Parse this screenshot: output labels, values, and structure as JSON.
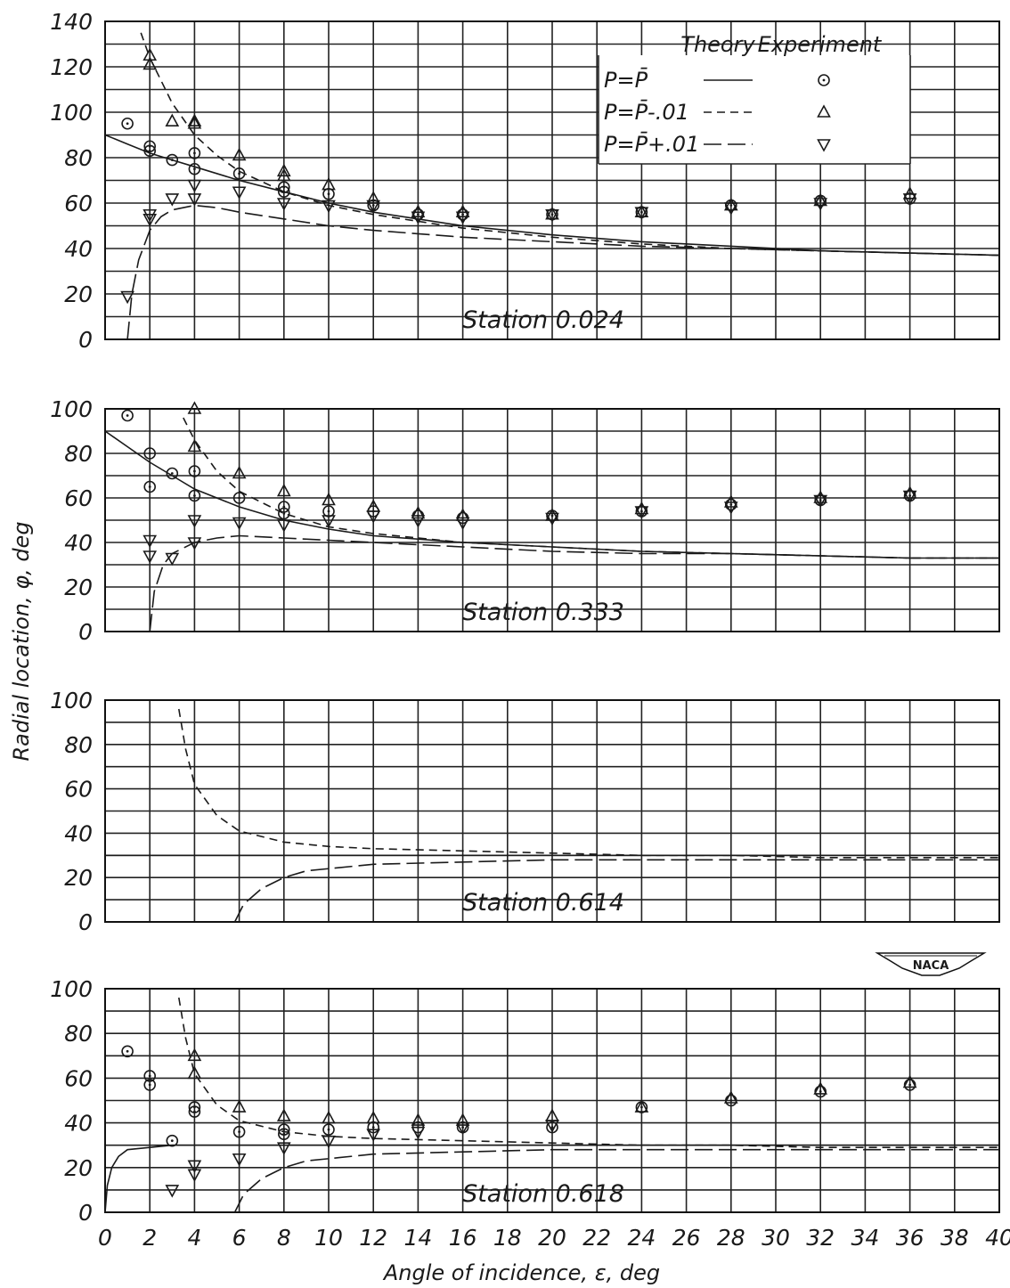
{
  "chart_data": {
    "type": "line",
    "xlabel": "Angle of incidence, ε, deg",
    "ylabel": "Radial location, φ, deg",
    "xlim": [
      0,
      40
    ],
    "x_ticks": [
      "0",
      "2",
      "4",
      "6",
      "8",
      "10",
      "12",
      "14",
      "16",
      "18",
      "20",
      "22",
      "24",
      "26",
      "28",
      "30",
      "32",
      "34",
      "36",
      "38",
      "40"
    ],
    "grid": true,
    "logo": "NACA",
    "legend": {
      "header_theory": "Theory",
      "header_experiment": "Experiment",
      "placement": "top-right of first panel",
      "entries": [
        {
          "label": "P=P̄",
          "line": "solid",
          "marker": "circle-dot"
        },
        {
          "label": "P=P̄-.01",
          "line": "short-dash",
          "marker": "triangle-up"
        },
        {
          "label": "P=P̄+.01",
          "line": "long-dash",
          "marker": "triangle-down"
        }
      ]
    },
    "panels": [
      {
        "title": "Station 0.024",
        "ylim": [
          0,
          140
        ],
        "y_ticks": [
          "0",
          "20",
          "40",
          "60",
          "80",
          "100",
          "120",
          "140"
        ],
        "series": [
          {
            "name": "P=P̄",
            "style": "theory",
            "dash": "solid",
            "x": [
              0,
              1,
              2,
              3,
              4,
              6,
              8,
              10,
              12,
              16,
              20,
              24,
              28,
              32,
              36,
              40
            ],
            "y": [
              90,
              86,
              82,
              79,
              76,
              70,
              65,
              60,
              56,
              50,
              46,
              43,
              41,
              39,
              38,
              37
            ]
          },
          {
            "name": "P=P̄-.01",
            "style": "theory",
            "dash": "short",
            "x": [
              1.6,
              2,
              3,
              4,
              5,
              6,
              8,
              10,
              12,
              16,
              20,
              24,
              28,
              32,
              36,
              40
            ],
            "y": [
              135,
              124,
              104,
              90,
              81,
              74,
              65,
              59,
              55,
              49,
              45,
              42,
              40,
              39,
              38,
              37
            ]
          },
          {
            "name": "P=P̄+.01",
            "style": "theory",
            "dash": "long",
            "x": [
              1.0,
              1.2,
              1.5,
              2,
              2.5,
              3,
              4,
              5,
              6,
              8,
              10,
              12,
              16,
              20,
              24,
              28,
              32,
              36,
              40
            ],
            "y": [
              0,
              20,
              35,
              48,
              54,
              57,
              59,
              58,
              56,
              53,
              50,
              48,
              45,
              43,
              41,
              40,
              39,
              38,
              37
            ]
          },
          {
            "name": "P=P̄",
            "style": "experiment",
            "marker": "circle",
            "x": [
              1,
              2,
              2,
              3,
              4,
              4,
              6,
              8,
              8,
              10,
              12,
              14,
              16,
              20,
              24,
              28,
              32,
              36
            ],
            "y": [
              95,
              85,
              83,
              79,
              82,
              75,
              73,
              67,
              65,
              64,
              59,
              55,
              55,
              55,
              56,
              59,
              61,
              62
            ]
          },
          {
            "name": "P=P̄-.01",
            "style": "experiment",
            "marker": "triangle-up",
            "x": [
              2,
              2,
              3,
              4,
              4,
              6,
              8,
              8,
              10,
              12,
              14,
              16,
              20,
              24,
              28,
              32,
              36
            ],
            "y": [
              125,
              121,
              96,
              96,
              95,
              81,
              74,
              72,
              68,
              62,
              56,
              56,
              55,
              56,
              59,
              61,
              64
            ]
          },
          {
            "name": "P=P̄+.01",
            "style": "experiment",
            "marker": "triangle-down",
            "x": [
              1,
              2,
              2,
              3,
              4,
              4,
              6,
              8,
              10,
              12,
              14,
              16,
              20,
              24,
              28,
              32,
              36
            ],
            "y": [
              19,
              55,
              53,
              62,
              68,
              62,
              65,
              60,
              59,
              59,
              54,
              54,
              55,
              56,
              58,
              60,
              62
            ]
          }
        ]
      },
      {
        "title": "Station 0.333",
        "ylim": [
          0,
          100
        ],
        "y_ticks": [
          "0",
          "20",
          "40",
          "60",
          "80",
          "100"
        ],
        "series": [
          {
            "name": "P=P̄",
            "style": "theory",
            "dash": "solid",
            "x": [
              0,
              1,
              2,
              3,
              4,
              6,
              8,
              10,
              12,
              16,
              20,
              24,
              28,
              32,
              36,
              40
            ],
            "y": [
              90,
              83,
              76,
              70,
              64,
              56,
              50,
              46,
              43,
              40,
              38,
              36,
              35,
              34,
              33,
              33
            ]
          },
          {
            "name": "P=P̄-.01",
            "style": "theory",
            "dash": "short",
            "x": [
              3.5,
              4,
              5,
              6,
              8,
              10,
              12,
              16,
              20,
              24,
              28,
              32,
              36,
              40
            ],
            "y": [
              96,
              86,
              72,
              63,
              53,
              47,
              44,
              40,
              38,
              36,
              35,
              34,
              33,
              33
            ]
          },
          {
            "name": "P=P̄+.01",
            "style": "theory",
            "dash": "long",
            "x": [
              2.0,
              2.2,
              2.6,
              3,
              4,
              5,
              6,
              8,
              10,
              12,
              16,
              20,
              24,
              28,
              32,
              36,
              40
            ],
            "y": [
              0,
              18,
              30,
              35,
              40,
              42,
              43,
              42,
              41,
              40,
              38,
              36,
              35,
              35,
              34,
              33,
              33
            ]
          },
          {
            "name": "P=P̄",
            "style": "experiment",
            "marker": "circle",
            "x": [
              1,
              2,
              2,
              3,
              4,
              4,
              6,
              8,
              8,
              10,
              12,
              14,
              16,
              20,
              24,
              28,
              32,
              36
            ],
            "y": [
              97,
              80,
              65,
              71,
              72,
              61,
              60,
              56,
              53,
              54,
              54,
              52,
              51,
              52,
              54,
              57,
              59,
              61
            ]
          },
          {
            "name": "P=P̄-.01",
            "style": "experiment",
            "marker": "triangle-up",
            "x": [
              4,
              4,
              6,
              8,
              10,
              12,
              14,
              16,
              20,
              24,
              28,
              32,
              36
            ],
            "y": [
              100,
              83,
              71,
              63,
              59,
              56,
              53,
              52,
              52,
              55,
              58,
              60,
              62
            ]
          },
          {
            "name": "P=P̄+.01",
            "style": "experiment",
            "marker": "triangle-down",
            "x": [
              2,
              2,
              3,
              4,
              4,
              6,
              8,
              10,
              12,
              14,
              16,
              20,
              24,
              28,
              32,
              36
            ],
            "y": [
              41,
              34,
              33,
              40,
              50,
              49,
              48,
              50,
              52,
              50,
              49,
              51,
              54,
              56,
              59,
              61
            ]
          }
        ]
      },
      {
        "title": "Station 0.614",
        "ylim": [
          0,
          100
        ],
        "y_ticks": [
          "0",
          "20",
          "40",
          "60",
          "80",
          "100"
        ],
        "series": [
          {
            "name": "P=P̄",
            "style": "theory",
            "dash": "solid",
            "x": [
              0,
              40
            ],
            "y": [
              30,
              30
            ]
          },
          {
            "name": "P=P̄-.01",
            "style": "theory",
            "dash": "short",
            "x": [
              3.3,
              3.6,
              4,
              5,
              6,
              8,
              10,
              12,
              16,
              20,
              24,
              28,
              32,
              36,
              40
            ],
            "y": [
              96,
              78,
              62,
              48,
              41,
              36,
              34,
              33,
              32,
              31,
              30,
              30,
              29,
              29,
              29
            ]
          },
          {
            "name": "P=P̄+.01",
            "style": "theory",
            "dash": "long",
            "x": [
              5.8,
              6.2,
              7,
              8,
              9,
              10,
              12,
              16,
              20,
              24,
              28,
              32,
              36,
              40
            ],
            "y": [
              0,
              8,
              15,
              20,
              23,
              24,
              26,
              27,
              28,
              28,
              28,
              28,
              28,
              28
            ]
          }
        ]
      },
      {
        "title": "Station 0.618",
        "ylim": [
          0,
          100
        ],
        "y_ticks": [
          "0",
          "20",
          "40",
          "60",
          "80",
          "100"
        ],
        "series": [
          {
            "name": "P=P̄",
            "style": "theory",
            "dash": "solid",
            "x": [
              0,
              0.1,
              0.3,
              0.6,
              1,
              2,
              3,
              40
            ],
            "y": [
              0,
              12,
              20,
              25,
              28,
              29,
              30,
              30
            ]
          },
          {
            "name": "P=P̄-.01",
            "style": "theory",
            "dash": "short",
            "x": [
              3.3,
              3.6,
              4,
              5,
              6,
              8,
              10,
              12,
              16,
              20,
              24,
              28,
              32,
              36,
              40
            ],
            "y": [
              96,
              78,
              62,
              48,
              41,
              36,
              34,
              33,
              32,
              31,
              30,
              30,
              29,
              29,
              29
            ]
          },
          {
            "name": "P=P̄+.01",
            "style": "theory",
            "dash": "long",
            "x": [
              5.8,
              6.2,
              7,
              8,
              9,
              10,
              12,
              16,
              20,
              24,
              28,
              32,
              36,
              40
            ],
            "y": [
              0,
              8,
              15,
              20,
              23,
              24,
              26,
              27,
              28,
              28,
              28,
              28,
              28,
              28
            ]
          },
          {
            "name": "P=P̄",
            "style": "experiment",
            "marker": "circle",
            "x": [
              1,
              2,
              2,
              3,
              4,
              4,
              6,
              8,
              8,
              10,
              12,
              14,
              16,
              20,
              24,
              28,
              32,
              36
            ],
            "y": [
              72,
              61,
              57,
              32,
              47,
              45,
              36,
              37,
              35,
              37,
              38,
              38,
              38,
              38,
              47,
              50,
              54,
              57
            ]
          },
          {
            "name": "P=P̄-.01",
            "style": "experiment",
            "marker": "triangle-up",
            "x": [
              4,
              4,
              6,
              8,
              10,
              12,
              14,
              16,
              20,
              24,
              28,
              32,
              36
            ],
            "y": [
              70,
              62,
              47,
              43,
              42,
              42,
              41,
              41,
              43,
              47,
              51,
              55,
              58
            ]
          },
          {
            "name": "P=P̄+.01",
            "style": "experiment",
            "marker": "triangle-down",
            "x": [
              3,
              4,
              4,
              6,
              8,
              10,
              12,
              14,
              16,
              20
            ],
            "y": [
              10,
              17,
              21,
              24,
              29,
              32,
              35,
              36,
              38,
              39
            ]
          }
        ]
      }
    ]
  }
}
